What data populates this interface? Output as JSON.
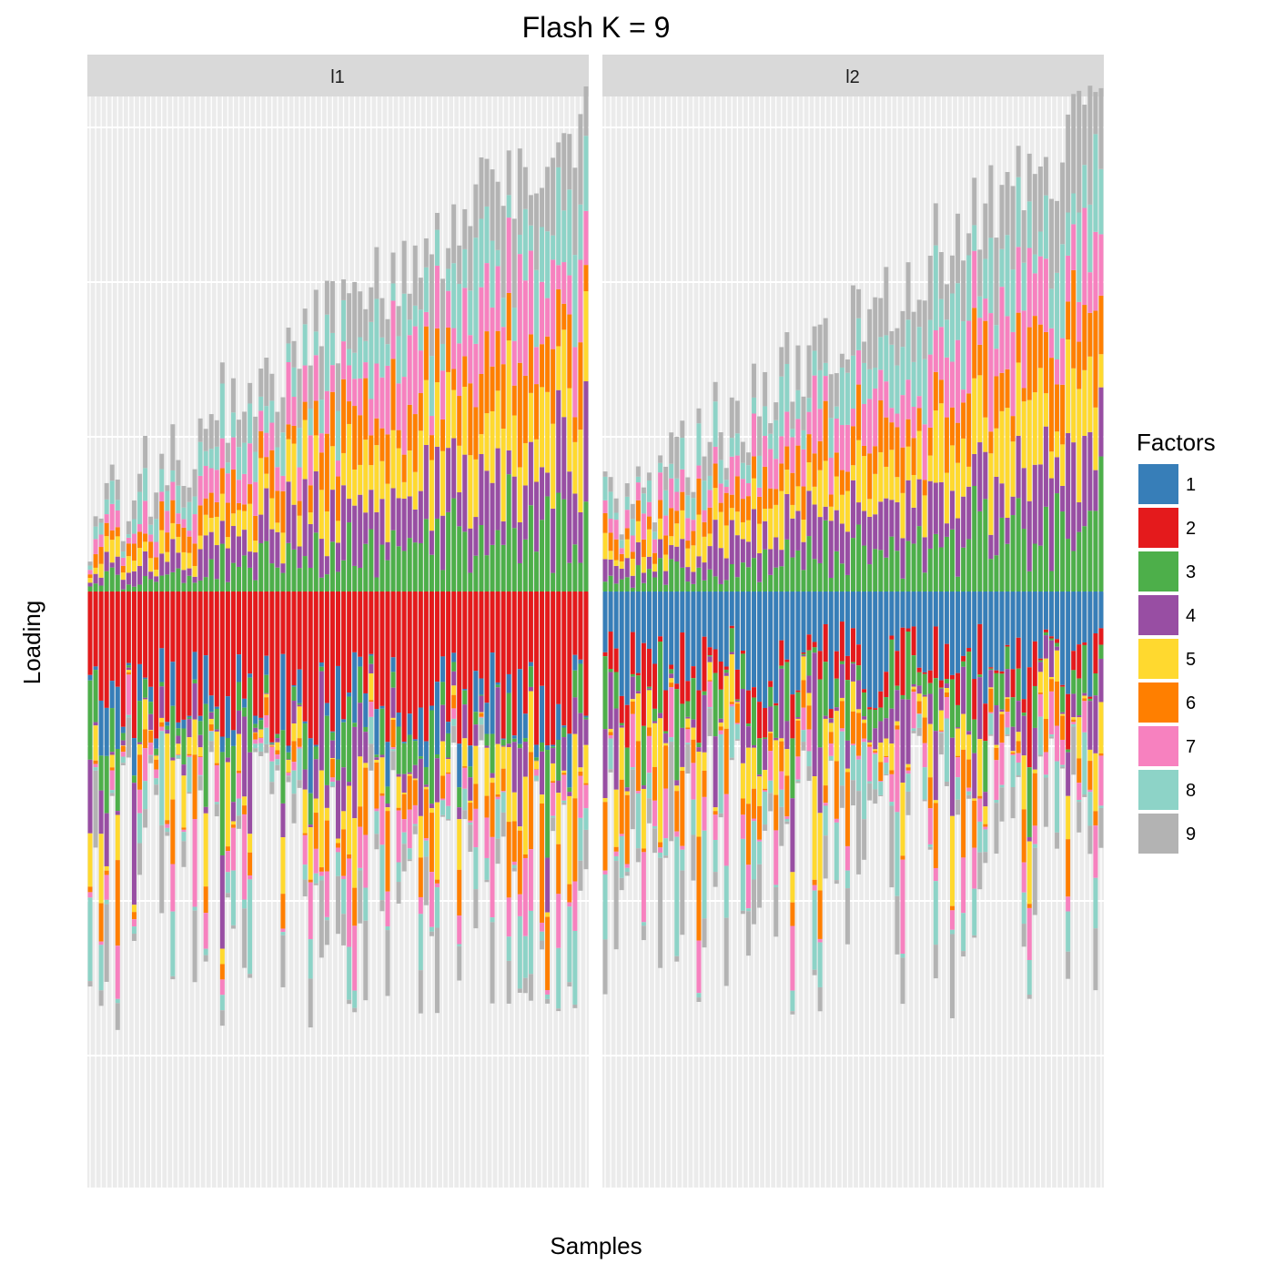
{
  "chart_data": {
    "type": "bar",
    "subtype": "stacked-diverging",
    "title": "Flash K = 9",
    "xlabel": "Samples",
    "ylabel": "Loading",
    "grid": true,
    "x_tick_labels": "none",
    "y_tick_labels": "none",
    "legend": {
      "title": "Factors",
      "placement": "right",
      "entries": [
        "1",
        "2",
        "3",
        "4",
        "5",
        "6",
        "7",
        "8",
        "9"
      ],
      "colors": [
        "#377eb8",
        "#e41a1c",
        "#4daf4a",
        "#984ea3",
        "#ffd92f",
        "#ff7f00",
        "#f781bf",
        "#8dd3c7",
        "#b3b3b3"
      ]
    },
    "panels": [
      {
        "label": "l1",
        "sample_count": 91,
        "dominant_factor_below_zero": "2"
      },
      {
        "label": "l2",
        "sample_count": 91,
        "dominant_factor_below_zero": "1"
      }
    ]
  }
}
